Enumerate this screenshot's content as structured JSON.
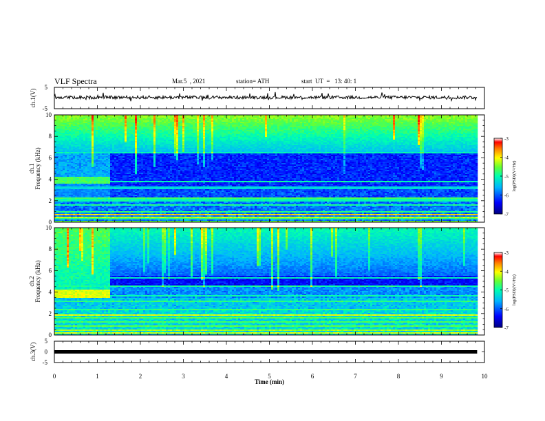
{
  "header": {
    "title": "VLF Spectra",
    "date": "Mar.5  , 2021",
    "station": "station= ATH",
    "start": "start  UT  =   13: 40: 1"
  },
  "colors": {
    "colormap": [
      "#000080",
      "#0000ff",
      "#00b4ff",
      "#00ffb0",
      "#66ff33",
      "#ffff00",
      "#ff8000",
      "#ff0000",
      "#ffffff"
    ],
    "trace": "#000000"
  },
  "chart_data": [
    {
      "type": "line",
      "panel": "ch1",
      "ylabel": "ch.1(V)",
      "ylim": [
        -5,
        5
      ],
      "yticks": [
        "5",
        "-5"
      ],
      "xlim": [
        0,
        10
      ],
      "description_values": {
        "baseline_V": 0.3,
        "fluctuation_V": 1.0
      }
    },
    {
      "type": "heatmap",
      "panel": "ch1-spectrogram",
      "ylabel_top": "ch.1",
      "ylabel": "Frequency  (kHz)",
      "ylim": [
        0,
        10
      ],
      "yticks": [
        "0",
        "2",
        "4",
        "6",
        "8",
        "10"
      ],
      "xlim": [
        0,
        9.83
      ],
      "colorbar": {
        "label": "log(PSD)(V²/Hz)",
        "range": [
          -7,
          -3
        ],
        "ticks": [
          "-3",
          "-4",
          "-5",
          "-6",
          "-7"
        ]
      },
      "features": [
        {
          "kind": "band",
          "f_kHz": [
            3.6,
            4.2
          ],
          "t_min": [
            0,
            1.25
          ],
          "logPSD": -4.8
        },
        {
          "kind": "band",
          "f_kHz": [
            0,
            2.3
          ],
          "t_min": [
            0,
            9.83
          ],
          "logPSD": -5.5
        },
        {
          "kind": "band",
          "f_kHz": [
            6.5,
            10
          ],
          "t_min": [
            0,
            9.83
          ],
          "logPSD": -4.6
        }
      ]
    },
    {
      "type": "heatmap",
      "panel": "ch2-spectrogram",
      "ylabel_top": "ch.2",
      "ylabel": "Frequency  (kHz)",
      "ylim": [
        0,
        10
      ],
      "yticks": [
        "0",
        "2",
        "4",
        "6",
        "8",
        "10"
      ],
      "xlim": [
        0,
        9.83
      ],
      "colorbar": {
        "label": "log(PSD)(V²/Hz)",
        "range": [
          -7,
          -3
        ],
        "ticks": [
          "-3",
          "-4",
          "-5",
          "-6",
          "-7"
        ]
      },
      "features": [
        {
          "kind": "band",
          "f_kHz": [
            3.5,
            4.2
          ],
          "t_min": [
            0,
            1.25
          ],
          "logPSD": -4.3
        },
        {
          "kind": "band",
          "f_kHz": [
            4.2,
            10
          ],
          "t_min": [
            0,
            1.25
          ],
          "logPSD": -4.6
        },
        {
          "kind": "band",
          "f_kHz": [
            0,
            3.5
          ],
          "t_min": [
            0,
            9.83
          ],
          "logPSD": -5.2
        }
      ]
    },
    {
      "type": "line",
      "panel": "ch3",
      "ylabel": "ch.3(V)",
      "ylim": [
        -5,
        5
      ],
      "yticks": [
        "5",
        "0",
        "-5"
      ],
      "xlim": [
        0,
        10
      ],
      "description_values": {
        "constant_V": 0.0
      }
    }
  ],
  "xaxis": {
    "label": "Time  (min)",
    "ticks": [
      "0",
      "1",
      "2",
      "3",
      "4",
      "5",
      "6",
      "7",
      "8",
      "9",
      "10"
    ],
    "range": [
      0,
      10
    ]
  }
}
